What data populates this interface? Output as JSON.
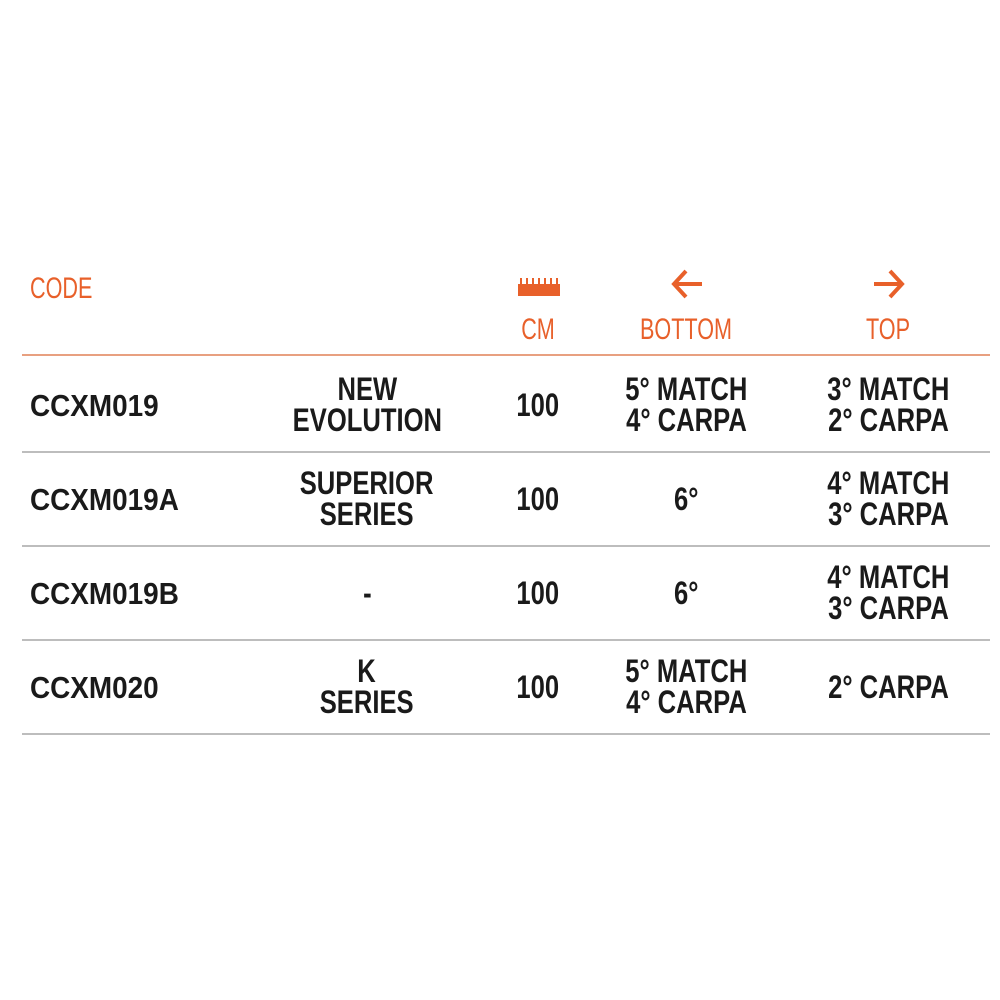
{
  "colors": {
    "accent": "#e8602a",
    "divider": "#bdbdbd",
    "text": "#1a1a1a"
  },
  "header": {
    "code": "CODE",
    "cm": "CM",
    "cm_icon": "ruler-icon",
    "bottom": "BOTTOM",
    "bottom_icon": "arrow-left-icon",
    "top": "TOP",
    "top_icon": "arrow-right-icon"
  },
  "rows": [
    {
      "code": "CCXM019",
      "name": [
        "NEW",
        "EVOLUTION"
      ],
      "cm": "100",
      "bottom": [
        "5° MATCH",
        "4° CARPA"
      ],
      "top": [
        "3° MATCH",
        "2° CARPA"
      ]
    },
    {
      "code": "CCXM019A",
      "name": [
        "SUPERIOR",
        "SERIES"
      ],
      "cm": "100",
      "bottom": [
        "6°"
      ],
      "top": [
        "4° MATCH",
        "3° CARPA"
      ]
    },
    {
      "code": "CCXM019B",
      "name": [
        "-"
      ],
      "cm": "100",
      "bottom": [
        "6°"
      ],
      "top": [
        "4° MATCH",
        "3° CARPA"
      ]
    },
    {
      "code": "CCXM020",
      "name": [
        "K",
        "SERIES"
      ],
      "cm": "100",
      "bottom": [
        "5° MATCH",
        "4° CARPA"
      ],
      "top": [
        "2° CARPA"
      ]
    }
  ]
}
